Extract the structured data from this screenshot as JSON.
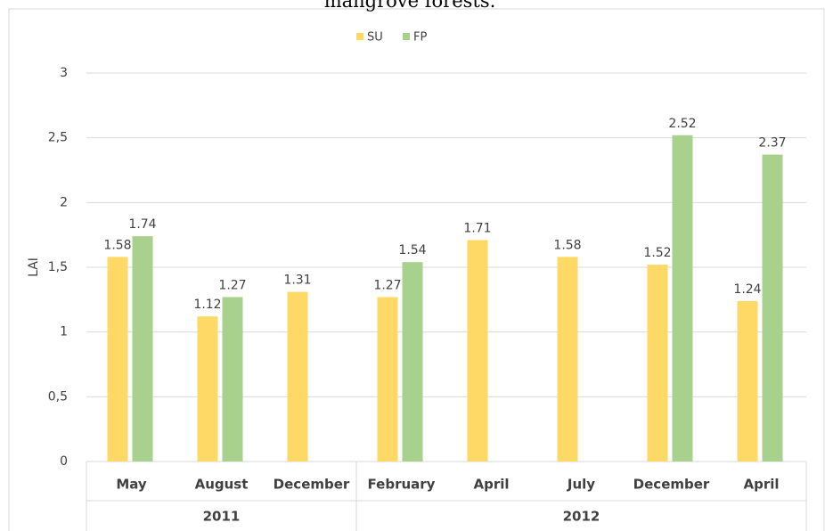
{
  "chart_data": {
    "type": "bar",
    "title": "mangrove forests.",
    "y_label": "LAI",
    "groups": [
      {
        "name": "2011",
        "categories": [
          "May",
          "August",
          "December"
        ]
      },
      {
        "name": "2012",
        "categories": [
          "February",
          "April",
          "July",
          "December",
          "April"
        ]
      }
    ],
    "series": [
      {
        "name": "SU",
        "color": "#ffd966",
        "values": [
          1.58,
          1.12,
          1.31,
          1.27,
          1.71,
          1.58,
          1.52,
          1.24
        ]
      },
      {
        "name": "FP",
        "color": "#a9d18e",
        "values": [
          1.74,
          1.27,
          null,
          1.54,
          null,
          null,
          2.52,
          2.37
        ]
      }
    ],
    "ylim": [
      0,
      3
    ],
    "yticks": [
      0,
      {
        "value": 0.5,
        "label": "0,5"
      },
      1,
      {
        "value": 1.5,
        "label": "1,5"
      },
      2,
      {
        "value": 2.5,
        "label": "2,5"
      },
      3
    ],
    "grid": true,
    "legend": "top"
  }
}
